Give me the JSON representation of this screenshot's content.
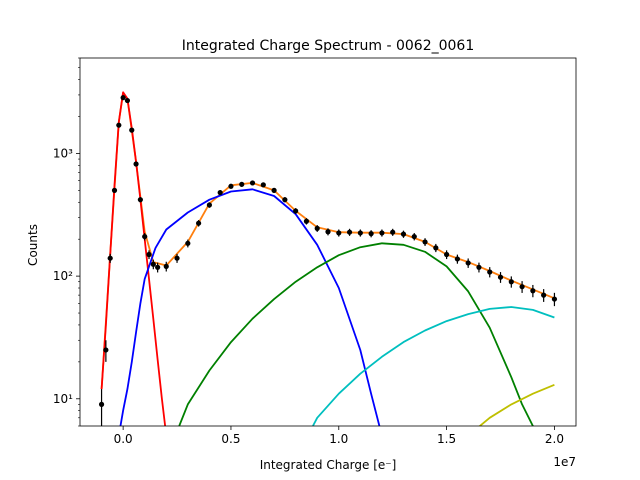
{
  "chart_data": {
    "type": "scatter",
    "title": "Integrated Charge Spectrum - 0062_0061",
    "xlabel": "Integrated Charge [e⁻]",
    "ylabel": "Counts",
    "x_offset_label": "1e7",
    "xlim": [
      -2000000,
      21000000
    ],
    "ylim": [
      6,
      6000
    ],
    "yscale": "log",
    "x_ticks": [
      0,
      5000000,
      10000000,
      15000000,
      20000000
    ],
    "x_tick_labels": [
      "0.0",
      "0.5",
      "1.0",
      "1.5",
      "2.0"
    ],
    "y_ticks": [
      10,
      100,
      1000
    ],
    "y_tick_labels": [
      "10¹",
      "10²",
      "10³"
    ],
    "grid": false,
    "data_series": {
      "color": "#000000",
      "x": [
        -1000000,
        -800000,
        -600000,
        -400000,
        -200000,
        0,
        200000,
        400000,
        600000,
        800000,
        1000000,
        1200000,
        1400000,
        1600000,
        2000000,
        2500000,
        3000000,
        3500000,
        4000000,
        4500000,
        5000000,
        5500000,
        6000000,
        6500000,
        7000000,
        7500000,
        8000000,
        8500000,
        9000000,
        9500000,
        10000000,
        10500000,
        11000000,
        11500000,
        12000000,
        12500000,
        13000000,
        13500000,
        14000000,
        14500000,
        15000000,
        15500000,
        16000000,
        16500000,
        17000000,
        17500000,
        18000000,
        18500000,
        19000000,
        19500000,
        20000000
      ],
      "y": [
        9,
        25,
        140,
        500,
        1700,
        2850,
        2700,
        1550,
        820,
        420,
        210,
        150,
        125,
        118,
        120,
        140,
        185,
        270,
        380,
        480,
        540,
        560,
        575,
        555,
        500,
        420,
        340,
        280,
        245,
        230,
        225,
        228,
        225,
        222,
        225,
        228,
        220,
        210,
        190,
        170,
        150,
        138,
        128,
        118,
        108,
        98,
        90,
        82,
        76,
        70,
        65
      ]
    },
    "fit_series": [
      {
        "color": "#ff7f0e",
        "x": [
          -1000000,
          -600000,
          -200000,
          0,
          200000,
          600000,
          1000000,
          1400000,
          2000000,
          3000000,
          4000000,
          5000000,
          6000000,
          7000000,
          8000000,
          9000000,
          10000000,
          11000000,
          12000000,
          13000000,
          14000000,
          15000000,
          16000000,
          17000000,
          18000000,
          19000000,
          20000000
        ],
        "y": [
          12,
          150,
          1800,
          3100,
          2800,
          850,
          230,
          130,
          122,
          190,
          390,
          550,
          575,
          500,
          340,
          250,
          228,
          226,
          226,
          220,
          190,
          150,
          130,
          110,
          92,
          78,
          66
        ]
      },
      {
        "color": "#ff0000",
        "x": [
          -1000000,
          -800000,
          -600000,
          -400000,
          -200000,
          0,
          200000,
          400000,
          600000,
          800000,
          1000000,
          1200000,
          1400000,
          1600000,
          1800000,
          2000000
        ],
        "y": [
          12,
          40,
          150,
          550,
          1800,
          3150,
          2800,
          1600,
          850,
          420,
          200,
          95,
          45,
          21,
          10,
          5
        ]
      },
      {
        "color": "#0000ff",
        "x": [
          -200000,
          0,
          200000,
          400000,
          600000,
          800000,
          1000000,
          1500000,
          2000000,
          3000000,
          4000000,
          5000000,
          6000000,
          7000000,
          8000000,
          9000000,
          10000000,
          11000000,
          11500000,
          12000000
        ],
        "y": [
          5,
          8,
          12,
          20,
          35,
          60,
          95,
          170,
          240,
          330,
          420,
          490,
          510,
          450,
          320,
          180,
          80,
          25,
          11,
          5
        ]
      },
      {
        "color": "#008000",
        "x": [
          2600000,
          3000000,
          4000000,
          5000000,
          6000000,
          7000000,
          8000000,
          9000000,
          10000000,
          11000000,
          12000000,
          13000000,
          14000000,
          15000000,
          16000000,
          17000000,
          18000000,
          18500000,
          19000000,
          19500000
        ],
        "y": [
          6,
          9,
          17,
          29,
          45,
          65,
          90,
          118,
          148,
          172,
          185,
          180,
          158,
          120,
          75,
          38,
          15,
          9,
          6,
          4
        ]
      },
      {
        "color": "#00bfbf",
        "x": [
          8800000,
          9000000,
          10000000,
          11000000,
          12000000,
          13000000,
          14000000,
          15000000,
          16000000,
          17000000,
          18000000,
          19000000,
          20000000
        ],
        "y": [
          6,
          7,
          11,
          16,
          22,
          29,
          36,
          43,
          49,
          54,
          56,
          53,
          46
        ]
      },
      {
        "color": "#bfbf00",
        "x": [
          16000000,
          17000000,
          18000000,
          19000000,
          20000000
        ],
        "y": [
          5,
          7,
          9,
          11,
          13
        ]
      }
    ]
  }
}
